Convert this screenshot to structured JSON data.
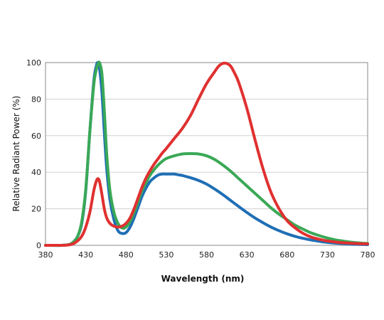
{
  "chart_data": {
    "type": "line",
    "title": "",
    "xlabel": "Wavelength (nm)",
    "ylabel": "Relative Radiant Power (%)",
    "xlim": [
      380,
      780
    ],
    "ylim": [
      0,
      100
    ],
    "xticks": [
      380,
      430,
      480,
      530,
      580,
      630,
      680,
      730,
      780
    ],
    "yticks": [
      0,
      20,
      40,
      60,
      80,
      100
    ],
    "grid": "horizontal",
    "legend": "none",
    "series": [
      {
        "color": "#1f6fb5",
        "x": [
          380,
          400,
          410,
          415,
          420,
          425,
          430,
          435,
          440,
          443,
          445,
          447,
          450,
          453,
          456,
          460,
          465,
          470,
          475,
          480,
          485,
          490,
          495,
          500,
          505,
          510,
          515,
          520,
          525,
          530,
          535,
          540,
          545,
          550,
          555,
          560,
          570,
          580,
          590,
          600,
          610,
          620,
          630,
          640,
          650,
          660,
          670,
          680,
          690,
          700,
          710,
          720,
          730,
          740,
          750,
          760,
          770,
          780
        ],
        "y": [
          0,
          0,
          0.5,
          2,
          5,
          12,
          30,
          62,
          90,
          98,
          100,
          97,
          84,
          62,
          42,
          25,
          14,
          8,
          6.5,
          7,
          10,
          15,
          21,
          27,
          31.5,
          35,
          37,
          38.5,
          39,
          39,
          39,
          39,
          38.6,
          38.2,
          37.6,
          37,
          35.5,
          33.5,
          30.8,
          27.8,
          24.5,
          21.2,
          18,
          15,
          12.4,
          10,
          8,
          6.3,
          4.9,
          3.8,
          2.9,
          2.2,
          1.6,
          1.2,
          0.9,
          0.6,
          0.5,
          0.4
        ]
      },
      {
        "color": "#3aa856",
        "x": [
          380,
          400,
          410,
          415,
          420,
          425,
          430,
          435,
          440,
          443,
          445,
          447,
          450,
          453,
          456,
          460,
          465,
          470,
          475,
          480,
          485,
          490,
          495,
          500,
          505,
          510,
          515,
          520,
          525,
          530,
          540,
          550,
          560,
          570,
          580,
          590,
          600,
          610,
          620,
          630,
          640,
          650,
          660,
          670,
          680,
          690,
          700,
          710,
          720,
          730,
          740,
          750,
          760,
          770,
          780
        ],
        "y": [
          0,
          0,
          0.5,
          2,
          5,
          13,
          31,
          62,
          88,
          96,
          99,
          100,
          94,
          74,
          50,
          30,
          18,
          12,
          9.5,
          10,
          13,
          18,
          24,
          30,
          34.5,
          38.5,
          41.5,
          44,
          46,
          47.5,
          49,
          50,
          50.2,
          50,
          49,
          47,
          44,
          40.5,
          36.5,
          32.5,
          28.5,
          24.5,
          20.5,
          17,
          14,
          11,
          8.8,
          6.8,
          5.3,
          4,
          3,
          2.3,
          1.7,
          1.3,
          1
        ]
      },
      {
        "color": "#e03030",
        "x": [
          380,
          400,
          410,
          415,
          420,
          425,
          430,
          435,
          440,
          443,
          445,
          447,
          450,
          453,
          456,
          460,
          465,
          470,
          475,
          480,
          485,
          490,
          495,
          500,
          505,
          510,
          515,
          520,
          525,
          530,
          540,
          550,
          560,
          570,
          580,
          590,
          595,
          600,
          605,
          610,
          615,
          620,
          630,
          640,
          650,
          660,
          670,
          680,
          690,
          700,
          710,
          720,
          730,
          740,
          750,
          760,
          770,
          780
        ],
        "y": [
          0,
          0,
          0.3,
          1,
          2.5,
          5,
          10,
          18,
          30,
          35,
          36.5,
          35,
          28,
          20,
          15,
          12,
          10.5,
          10,
          10.5,
          12,
          15,
          20,
          26,
          32,
          37,
          41,
          44.5,
          47.5,
          50.5,
          53,
          58.5,
          64,
          71,
          80,
          88.5,
          95,
          98,
          99.5,
          99.5,
          98,
          94,
          89,
          75,
          58,
          42,
          29,
          20,
          13.5,
          9.5,
          6.5,
          4.5,
          3.3,
          2.4,
          1.8,
          1.4,
          1.1,
          0.9,
          0.8
        ]
      }
    ]
  }
}
